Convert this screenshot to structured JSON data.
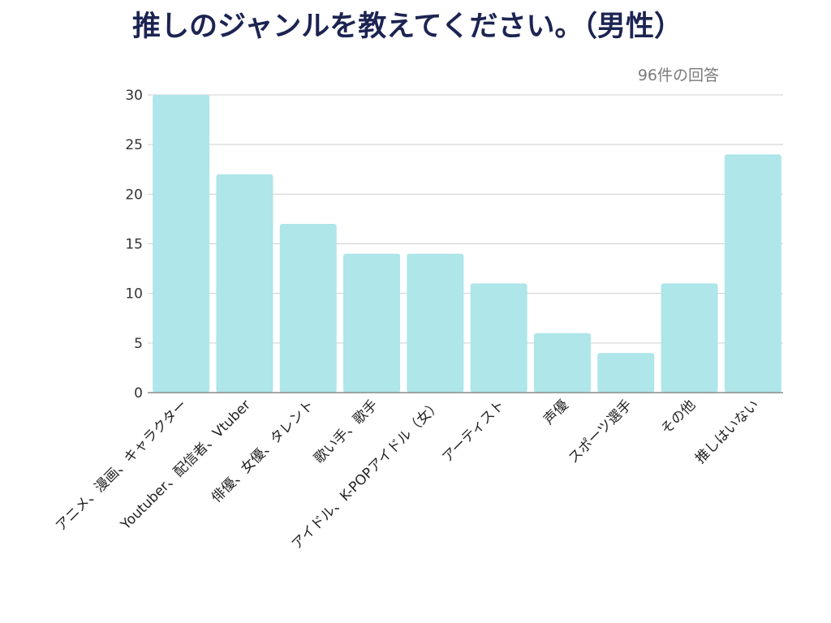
{
  "chart_data": {
    "type": "bar",
    "title": "推しのジャンルを教えてください。（男性）",
    "subtitle": "96件の回答",
    "categories": [
      "アニメ、漫画、キャラクター",
      "Youtuber、配信者、Vtuber",
      "俳優、女優、タレント",
      "歌い手、歌手",
      "アイドル、K-POPアイドル（女）",
      "アーティスト",
      "声優",
      "スポーツ選手",
      "その他",
      "推しはいない"
    ],
    "values": [
      30,
      22,
      17,
      14,
      14,
      11,
      6,
      4,
      11,
      24
    ],
    "yticks": [
      0,
      5,
      10,
      15,
      20,
      25,
      30
    ],
    "ylim": [
      0,
      30
    ],
    "xlabel": "",
    "ylabel": "",
    "grid": true,
    "legend": "none",
    "bar_color": "#aee6ea",
    "grid_color": "#cfcfcf",
    "axis_color": "#8a8a8a",
    "title_color": "#1c2452"
  }
}
